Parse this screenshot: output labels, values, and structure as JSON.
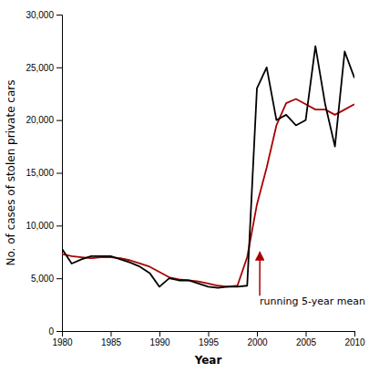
{
  "chart_data": {
    "type": "line",
    "x": [
      1980,
      1981,
      1982,
      1983,
      1984,
      1985,
      1986,
      1987,
      1988,
      1989,
      1990,
      1991,
      1992,
      1993,
      1994,
      1995,
      1996,
      1997,
      1998,
      1999,
      2000,
      2001,
      2002,
      2003,
      2004,
      2005,
      2006,
      2007,
      2008,
      2009,
      2010
    ],
    "series": [
      {
        "color": "#000000",
        "values": [
          7800,
          6400,
          6800,
          7100,
          7100,
          7100,
          6800,
          6500,
          6100,
          5500,
          4200,
          5000,
          4800,
          4800,
          4500,
          4200,
          4100,
          4200,
          4200,
          4300,
          23000,
          25000,
          20000,
          20500,
          19500,
          20000,
          27000,
          21500,
          17500,
          26500,
          24000
        ]
      },
      {
        "color": "#aa0000",
        "values": [
          7300,
          7100,
          7000,
          6900,
          7000,
          7000,
          6900,
          6700,
          6400,
          6100,
          5600,
          5100,
          4900,
          4800,
          4700,
          4500,
          4300,
          4200,
          4300,
          7000,
          12000,
          15500,
          19500,
          21600,
          22000,
          21500,
          21000,
          21000,
          20500,
          21000,
          21500
        ]
      }
    ],
    "xlim": [
      1980,
      2010
    ],
    "ylim": [
      0,
      30000
    ],
    "xticks": [
      1980,
      1985,
      1990,
      1995,
      2000,
      2005,
      2010
    ],
    "yticks": [
      0,
      {
        "value": 5000,
        "label": "5,000"
      },
      {
        "value": 10000,
        "label": "10,000"
      },
      {
        "value": 15000,
        "label": "15,000"
      },
      {
        "value": 20000,
        "label": "20,000"
      },
      {
        "value": 25000,
        "label": "25,000"
      },
      {
        "value": 30000,
        "label": "30,000"
      }
    ],
    "xlabel": "Year",
    "ylabel": "No. of cases of stolen private cars",
    "annotations": [
      {
        "text": "running 5-year mean",
        "x": 2000.3,
        "y": 7500
      }
    ],
    "grid": false
  }
}
